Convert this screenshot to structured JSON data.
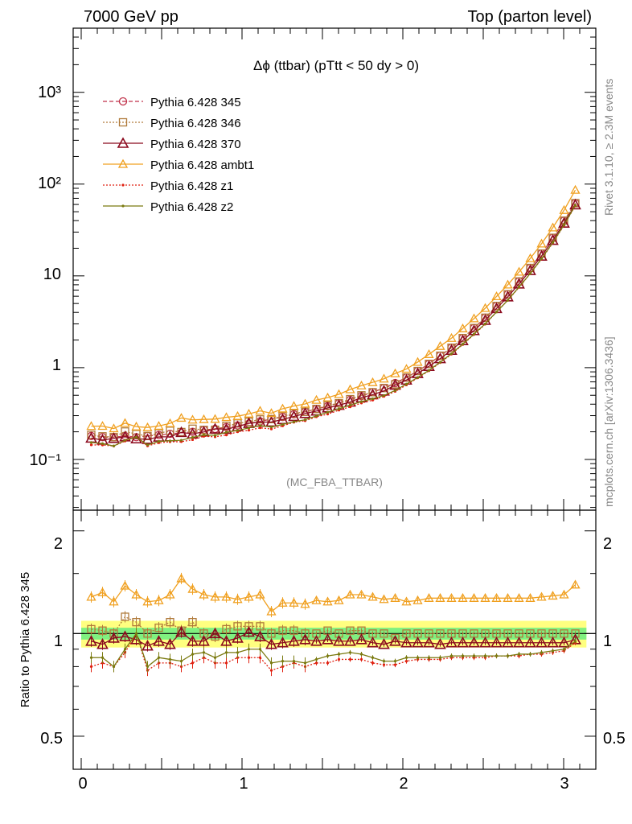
{
  "header": {
    "left": "7000 GeV pp",
    "right": "Top (parton level)"
  },
  "plot_title": "Δϕ (ttbar) (pTtt < 50 dy > 0)",
  "watermark": "(MC_FBA_TTBAR)",
  "side_label_top": "Rivet 3.1.10, ≥ 2.3M events",
  "side_label_bottom": "mcplots.cern.ch [arXiv:1306.3436]",
  "ratio_ylabel": "Ratio to Pythia 6.428 345",
  "top_ticks": [
    "10⁻¹",
    "1",
    "10",
    "10²",
    "10³"
  ],
  "ratio_ticks": [
    "0.5",
    "1",
    "2"
  ],
  "x_ticks": [
    "0",
    "1",
    "2",
    "3"
  ],
  "legend": [
    "Pythia 6.428 345",
    "Pythia 6.428 346",
    "Pythia 6.428 370",
    "Pythia 6.428 ambt1",
    "Pythia 6.428 z1",
    "Pythia 6.428 z2"
  ],
  "colors": {
    "p345": "#c0324a",
    "p346": "#b07a3a",
    "p370": "#8b0a1e",
    "ambt1": "#f0a020",
    "z1": "#e02010",
    "z2": "#7a7a10",
    "band_yellow": "#ffff80",
    "band_green": "#80f080"
  },
  "chart_data": {
    "type": "line",
    "xlim": [
      -0.05,
      3.2
    ],
    "top_ylim_log": [
      0.028,
      5000
    ],
    "ratio_ylim": [
      0.4,
      2.3
    ],
    "x": [
      0.0625,
      0.1325,
      0.2025,
      0.2725,
      0.3425,
      0.4125,
      0.4825,
      0.5525,
      0.6225,
      0.6925,
      0.7625,
      0.8325,
      0.9025,
      0.9725,
      1.0425,
      1.1125,
      1.1825,
      1.2525,
      1.3225,
      1.3925,
      1.4625,
      1.5325,
      1.6025,
      1.6725,
      1.7425,
      1.8125,
      1.8825,
      1.9525,
      2.0225,
      2.0925,
      2.1625,
      2.2325,
      2.3025,
      2.3725,
      2.4425,
      2.5125,
      2.5825,
      2.6525,
      2.7225,
      2.7925,
      2.8625,
      2.9325,
      3.0025,
      3.0725
    ],
    "base_345": [
      0.18,
      0.175,
      0.175,
      0.18,
      0.175,
      0.18,
      0.185,
      0.19,
      0.195,
      0.2,
      0.21,
      0.215,
      0.225,
      0.235,
      0.245,
      0.26,
      0.275,
      0.29,
      0.31,
      0.33,
      0.355,
      0.38,
      0.41,
      0.445,
      0.49,
      0.54,
      0.6,
      0.68,
      0.78,
      0.92,
      1.1,
      1.35,
      1.65,
      2.1,
      2.7,
      3.5,
      4.7,
      6.3,
      8.7,
      12.2,
      17.5,
      26,
      40,
      62
    ],
    "ratios": {
      "p346": [
        1.03,
        1.02,
        1.0,
        1.12,
        1.08,
        1.0,
        1.04,
        1.08,
        1.02,
        1.08,
        1.0,
        0.98,
        1.03,
        1.05,
        1.05,
        1.05,
        1.0,
        1.02,
        1.02,
        1.0,
        1.0,
        1.02,
        1.0,
        1.02,
        1.02,
        1.0,
        1.0,
        0.97,
        1.0,
        1.0,
        1.0,
        1.0,
        1.0,
        1.0,
        1.0,
        1.0,
        1.0,
        1.0,
        1.0,
        1.0,
        1.0,
        1.0,
        1.0,
        1.0
      ],
      "p370": [
        0.95,
        0.93,
        0.97,
        0.98,
        0.96,
        0.92,
        0.95,
        0.93,
        1.01,
        0.95,
        0.95,
        1.0,
        0.95,
        0.97,
        1.01,
        0.98,
        0.93,
        0.94,
        0.95,
        0.96,
        0.95,
        0.96,
        0.95,
        0.95,
        0.96,
        0.94,
        0.93,
        0.95,
        0.94,
        0.94,
        0.94,
        0.93,
        0.94,
        0.94,
        0.94,
        0.94,
        0.94,
        0.94,
        0.94,
        0.94,
        0.94,
        0.94,
        0.94,
        0.96
      ],
      "ambt1": [
        1.28,
        1.32,
        1.24,
        1.38,
        1.3,
        1.24,
        1.25,
        1.3,
        1.45,
        1.35,
        1.3,
        1.28,
        1.28,
        1.26,
        1.28,
        1.3,
        1.16,
        1.23,
        1.23,
        1.22,
        1.25,
        1.24,
        1.25,
        1.3,
        1.3,
        1.28,
        1.26,
        1.27,
        1.24,
        1.25,
        1.27,
        1.27,
        1.27,
        1.27,
        1.27,
        1.27,
        1.27,
        1.27,
        1.27,
        1.27,
        1.28,
        1.29,
        1.3,
        1.39
      ],
      "z1": [
        0.8,
        0.82,
        0.8,
        0.88,
        1.0,
        0.78,
        0.82,
        0.82,
        0.8,
        0.82,
        0.85,
        0.82,
        0.82,
        0.85,
        0.85,
        0.85,
        0.78,
        0.8,
        0.82,
        0.8,
        0.82,
        0.82,
        0.84,
        0.84,
        0.84,
        0.82,
        0.81,
        0.81,
        0.83,
        0.84,
        0.84,
        0.84,
        0.85,
        0.85,
        0.85,
        0.85,
        0.86,
        0.86,
        0.86,
        0.87,
        0.87,
        0.88,
        0.89,
        0.94
      ],
      "z2": [
        0.85,
        0.85,
        0.8,
        0.9,
        1.0,
        0.8,
        0.85,
        0.84,
        0.83,
        0.87,
        0.88,
        0.85,
        0.88,
        0.88,
        0.9,
        0.9,
        0.82,
        0.83,
        0.83,
        0.82,
        0.84,
        0.86,
        0.87,
        0.88,
        0.87,
        0.85,
        0.83,
        0.83,
        0.85,
        0.85,
        0.85,
        0.85,
        0.86,
        0.86,
        0.86,
        0.86,
        0.86,
        0.86,
        0.87,
        0.87,
        0.88,
        0.89,
        0.9,
        0.95
      ]
    },
    "band_yellow_halfwidth": 0.09,
    "band_green_halfwidth": 0.04
  }
}
